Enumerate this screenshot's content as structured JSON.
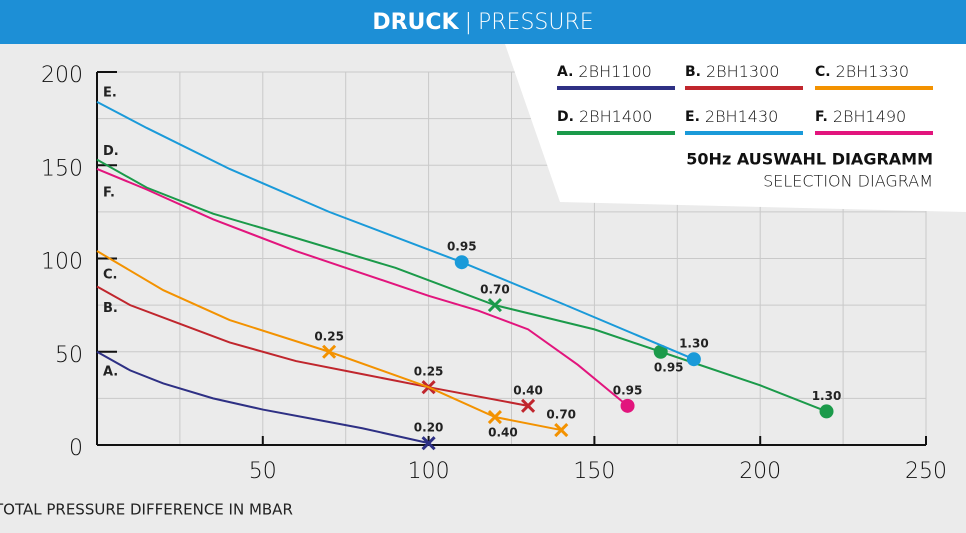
{
  "chart_data": {
    "type": "line",
    "title_bold": "DRUCK",
    "title_sep": "|",
    "title_rest": "PRESSURE",
    "subtitle_bold": "50Hz AUSWAHL DIAGRAMM",
    "subtitle": "SELECTION DIAGRAM",
    "x_label": "TOTAL PRESSURE DIFFERENCE IN MBAR",
    "xlim": [
      0,
      250
    ],
    "ylim": [
      0,
      200
    ],
    "xticks": [
      50,
      100,
      150,
      200,
      250
    ],
    "yticks": [
      0,
      50,
      100,
      150,
      200
    ],
    "x_grid": [
      25,
      50,
      75,
      100,
      125,
      150,
      175,
      200,
      225,
      250
    ],
    "y_grid": [
      25,
      50,
      75,
      100,
      125,
      150,
      175,
      200
    ],
    "grid": true,
    "series": [
      {
        "letter": "A.",
        "name": "2BH1100",
        "color": "#2e3084",
        "x": [
          0,
          10,
          20,
          35,
          50,
          65,
          80,
          100
        ],
        "values": [
          50,
          40,
          33,
          25,
          19,
          14,
          9,
          1
        ],
        "points": [
          {
            "x": 100,
            "y": 1,
            "label": "0.20",
            "shape": "x",
            "label_pos": "above"
          }
        ]
      },
      {
        "letter": "B.",
        "name": "2BH1300",
        "color": "#c0262d",
        "x": [
          0,
          10,
          25,
          40,
          60,
          80,
          100,
          130
        ],
        "values": [
          85,
          75,
          65,
          55,
          45,
          38,
          31,
          21
        ],
        "points": [
          {
            "x": 100,
            "y": 31,
            "label": "0.25",
            "shape": "x",
            "label_pos": "above"
          },
          {
            "x": 130,
            "y": 21,
            "label": "0.40",
            "shape": "x",
            "label_pos": "above"
          }
        ]
      },
      {
        "letter": "C.",
        "name": "2BH1330",
        "color": "#f39200",
        "x": [
          0,
          20,
          40,
          70,
          100,
          120,
          140
        ],
        "values": [
          104,
          83,
          67,
          50,
          31,
          15,
          8
        ],
        "points": [
          {
            "x": 70,
            "y": 50,
            "label": "0.25",
            "shape": "x",
            "label_pos": "above"
          },
          {
            "x": 120,
            "y": 15,
            "label": "0.40",
            "shape": "x",
            "label_pos": "below"
          },
          {
            "x": 140,
            "y": 8,
            "label": "0.70",
            "shape": "x",
            "label_pos": "above"
          }
        ]
      },
      {
        "letter": "D.",
        "name": "2BH1400",
        "color": "#1b9a4a",
        "x": [
          0,
          15,
          35,
          60,
          90,
          120,
          150,
          170,
          200,
          220
        ],
        "values": [
          153,
          138,
          124,
          111,
          95,
          75,
          62,
          50,
          32,
          18
        ],
        "points": [
          {
            "x": 120,
            "y": 75,
            "label": "0.70",
            "shape": "x",
            "label_pos": "above"
          },
          {
            "x": 170,
            "y": 50,
            "label": "0.95",
            "shape": "dot",
            "label_pos": "below"
          },
          {
            "x": 220,
            "y": 18,
            "label": "1.30",
            "shape": "dot",
            "label_pos": "above"
          }
        ]
      },
      {
        "letter": "E.",
        "name": "2BH1430",
        "color": "#1a9ad9",
        "x": [
          0,
          15,
          40,
          70,
          110,
          140,
          180
        ],
        "values": [
          184,
          170,
          148,
          125,
          98,
          76,
          46
        ],
        "points": [
          {
            "x": 110,
            "y": 98,
            "label": "0.95",
            "shape": "dot",
            "label_pos": "above"
          },
          {
            "x": 180,
            "y": 46,
            "label": "1.30",
            "shape": "dot",
            "label_pos": "above"
          }
        ]
      },
      {
        "letter": "F.",
        "name": "2BH1490",
        "color": "#e2157d",
        "x": [
          0,
          15,
          35,
          60,
          80,
          100,
          115,
          130,
          145,
          160
        ],
        "values": [
          148,
          137,
          121,
          104,
          92,
          80,
          72,
          62,
          43,
          21
        ],
        "points": [
          {
            "x": 160,
            "y": 21,
            "label": "0.95",
            "shape": "dot",
            "label_pos": "above"
          }
        ]
      }
    ]
  }
}
